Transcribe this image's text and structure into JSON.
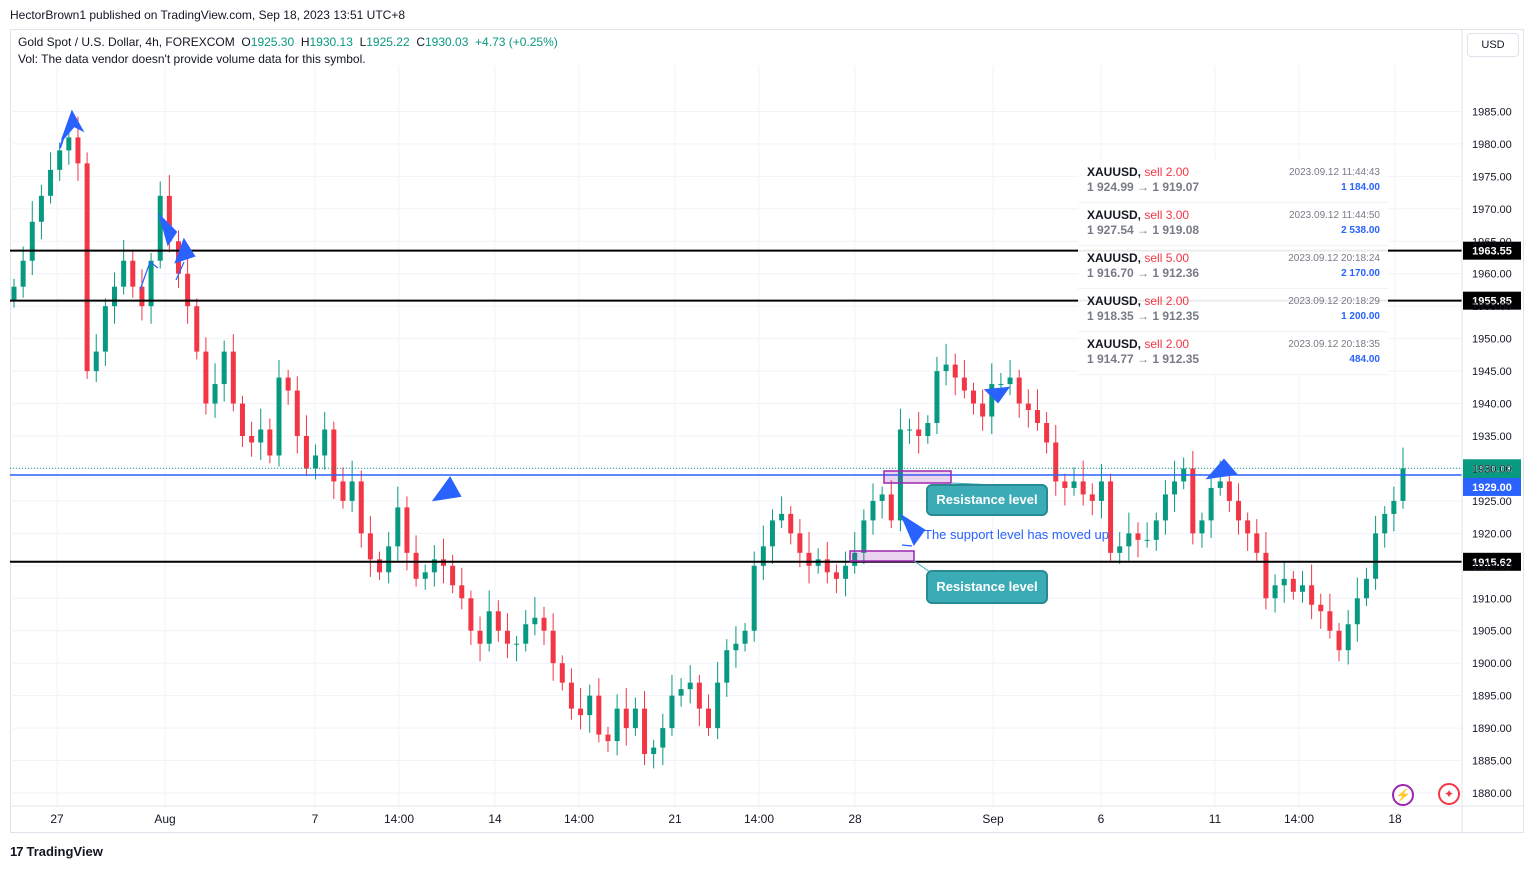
{
  "header": {
    "published": "HectorBrown1 published on TradingView.com, Sep 18, 2023 13:51 UTC+8"
  },
  "legend": {
    "symbol": "Gold Spot / U.S. Dollar, 4h, FOREXCOM",
    "o_label": "O",
    "o": "1925.30",
    "h_label": "H",
    "h": "1930.13",
    "l_label": "L",
    "l": "1925.22",
    "c_label": "C",
    "c": "1930.03",
    "chg": "+4.73 (+0.25%)",
    "vol": "Vol: The data vendor doesn't provide volume data for this symbol."
  },
  "currency_button": "USD",
  "footer": {
    "logo_glyph": "17",
    "brand": "TradingView"
  },
  "colors": {
    "up": "#089981",
    "down": "#f23645",
    "line": "#000000",
    "current": "#2962ff",
    "arrow": "#2962ff",
    "zone": "#9c27b0"
  },
  "trades": [
    {
      "symbol": "XAUUSD,",
      "side": "sell 2.00",
      "prices": "1 924.99 → 1 919.07",
      "time": "2023.09.12 11:44:43",
      "pnl": "1 184.00"
    },
    {
      "symbol": "XAUUSD,",
      "side": "sell 3.00",
      "prices": "1 927.54 → 1 919.08",
      "time": "2023.09.12 11:44:50",
      "pnl": "2 538.00"
    },
    {
      "symbol": "XAUUSD,",
      "side": "sell 5.00",
      "prices": "1 916.70 → 1 912.36",
      "time": "2023.09.12 20:18:24",
      "pnl": "2 170.00"
    },
    {
      "symbol": "XAUUSD,",
      "side": "sell 2.00",
      "prices": "1 918.35 → 1 912.35",
      "time": "2023.09.12 20:18:29",
      "pnl": "1 200.00"
    },
    {
      "symbol": "XAUUSD,",
      "side": "sell 2.00",
      "prices": "1 914.77 → 1 912.35",
      "time": "2023.09.12 20:18:35",
      "pnl": "484.00"
    }
  ],
  "annotations": {
    "resistance_top": "Resistance level",
    "resistance_bottom": "Resistance level",
    "support_note": "The support level has moved up"
  },
  "chart_data": {
    "type": "candlestick",
    "ylim": [
      1878,
      1992
    ],
    "y_ticks": [
      1880,
      1885,
      1890,
      1895,
      1900,
      1905,
      1910,
      1915,
      1920,
      1925,
      1930,
      1935,
      1940,
      1945,
      1950,
      1955,
      1960,
      1965,
      1970,
      1975,
      1980,
      1985
    ],
    "x_ticks": [
      "27",
      "Aug",
      "7",
      "14:00",
      "14",
      "14:00",
      "21",
      "14:00",
      "28",
      "Sep",
      "6",
      "11",
      "14:00",
      "18"
    ],
    "horizontal_levels": [
      {
        "price": 1963.55,
        "label": "1963.55"
      },
      {
        "price": 1955.85,
        "label": "1955.85"
      },
      {
        "price": 1915.62,
        "label": "1915.62"
      }
    ],
    "current_price": {
      "price": 1930.03,
      "label": "1930.03",
      "countdown": "08:23"
    },
    "blue_line": {
      "price": 1929.0,
      "label": "1929.00"
    },
    "close_path": [
      1958,
      1962,
      1968,
      1972,
      1976,
      1979,
      1981,
      1977,
      1945,
      1948,
      1955,
      1958,
      1962,
      1958,
      1955,
      1962,
      1972,
      1965,
      1960,
      1955,
      1948,
      1940,
      1943,
      1948,
      1940,
      1935,
      1934,
      1936,
      1932,
      1944,
      1942,
      1935,
      1930,
      1932,
      1936,
      1928,
      1925,
      1928,
      1920,
      1916,
      1914,
      1918,
      1924,
      1917,
      1913,
      1914,
      1916,
      1915,
      1912,
      1910,
      1905,
      1903,
      1908,
      1905,
      1903,
      1903,
      1906,
      1907,
      1905,
      1900,
      1897,
      1893,
      1892,
      1895,
      1889,
      1888,
      1893,
      1890,
      1893,
      1886,
      1887,
      1890,
      1895,
      1896,
      1897,
      1893,
      1890,
      1897,
      1902,
      1903,
      1905,
      1915,
      1918,
      1922,
      1923,
      1920,
      1917,
      1915,
      1916,
      1914,
      1913,
      1915,
      1917,
      1922,
      1925,
      1926,
      1922,
      1936,
      1936,
      1935,
      1937,
      1945,
      1946,
      1944,
      1942,
      1940,
      1938,
      1943,
      1943,
      1944,
      1940,
      1939,
      1937,
      1934,
      1928,
      1927,
      1928,
      1926,
      1925,
      1928,
      1917,
      1918,
      1920,
      1919,
      1919,
      1922,
      1926,
      1928,
      1930,
      1920,
      1922,
      1927,
      1928,
      1925,
      1922,
      1920,
      1917,
      1910,
      1912,
      1913,
      1911,
      1912,
      1909,
      1908,
      1905,
      1902,
      1906,
      1910,
      1913,
      1920,
      1923,
      1925,
      1930
    ]
  }
}
